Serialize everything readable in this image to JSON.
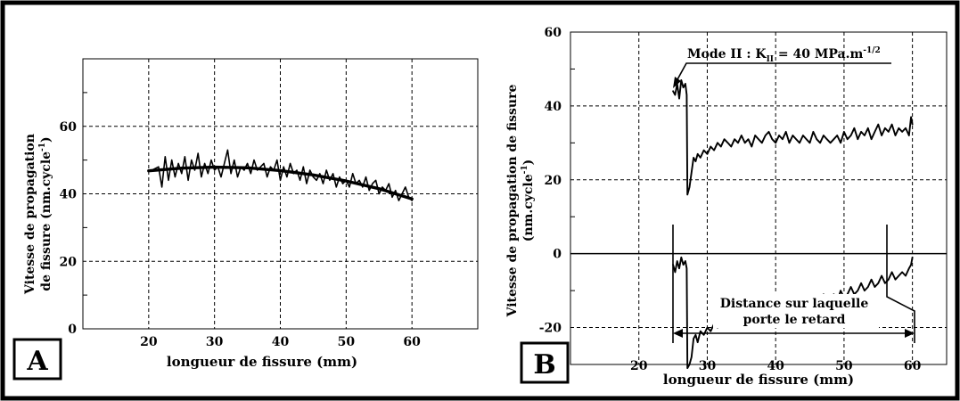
{
  "chart_data": [
    {
      "type": "line",
      "panel_label": "A",
      "xlabel": "longueur de fissure (mm)",
      "ylabel_line1": "Vitesse de propagation",
      "ylabel_line2": "de fissure (nm.cycle",
      "ylabel_sup": "-1",
      "ylabel_close": ")",
      "xlim": [
        10,
        70
      ],
      "ylim": [
        0,
        80
      ],
      "xticks": [
        20,
        30,
        40,
        50,
        60
      ],
      "yticks": [
        0,
        20,
        40,
        60
      ],
      "grid": true,
      "series": [
        {
          "x": [
            20.5,
            21.5,
            22.0,
            22.5,
            23.0,
            23.5,
            24.0,
            24.5,
            25.0,
            25.5,
            26.0,
            26.5,
            27.0,
            27.5,
            28.0,
            28.5,
            29.0,
            29.5,
            30.0,
            30.5,
            31.0,
            31.5,
            32.0,
            32.5,
            33.0,
            33.5,
            34.0,
            34.5,
            35.0,
            35.5,
            36.0,
            36.5,
            37.0,
            37.5,
            38.0,
            38.5,
            39.0,
            39.5,
            40.0,
            40.5,
            41.0,
            41.5,
            42.0,
            42.5,
            43.0,
            43.5,
            44.0,
            44.5,
            45.0,
            45.5,
            46.0,
            46.5,
            47.0,
            47.5,
            48.0,
            48.5,
            49.0,
            49.5,
            50.0,
            50.5,
            51.0,
            51.5,
            52.0,
            52.5,
            53.0,
            53.5,
            54.0,
            54.5,
            55.0,
            55.5,
            56.0,
            56.5,
            57.0,
            57.5,
            58.0,
            58.5,
            59.0,
            59.5,
            60.0
          ],
          "values": [
            47,
            48,
            42,
            51,
            44,
            50,
            45,
            49,
            46,
            51,
            44,
            50,
            47,
            52,
            45,
            49,
            46,
            50,
            47,
            48,
            45,
            49,
            53,
            46,
            50,
            45,
            48,
            47,
            49,
            46,
            50,
            47,
            48,
            49,
            45,
            48,
            47,
            50,
            44,
            48,
            45,
            49,
            46,
            47,
            44,
            48,
            43,
            47,
            45,
            44,
            46,
            43,
            47,
            44,
            46,
            42,
            45,
            43,
            44,
            42,
            46,
            43,
            44,
            42,
            45,
            41,
            43,
            44,
            40,
            42,
            41,
            43,
            39,
            41,
            38,
            40,
            42,
            39,
            38
          ]
        },
        {
          "x": [
            20.0,
            25.0,
            30.0,
            35.0,
            40.0,
            45.0,
            50.0,
            55.0,
            60.0
          ],
          "values": [
            46.8,
            47.6,
            47.9,
            47.7,
            46.9,
            45.6,
            43.8,
            41.5,
            38.5
          ]
        }
      ]
    },
    {
      "type": "line",
      "panel_label": "B",
      "xlabel": "longueur de fissure (mm)",
      "ylabel_line1": "Vitesse de propagation de fissure",
      "ylabel_line2": "(nm.cycle",
      "ylabel_sup": "-1",
      "ylabel_close": ")",
      "xlim": [
        10,
        65
      ],
      "ylim": [
        -30,
        60
      ],
      "xticks": [
        20,
        30,
        40,
        50,
        60
      ],
      "yticks": [
        -20,
        0,
        20,
        40,
        60
      ],
      "grid": true,
      "series": [
        {
          "x": [
            25.0,
            25.3,
            25.6,
            25.9,
            26.2,
            26.5,
            26.8,
            27.0,
            27.1,
            27.4,
            27.7,
            28.0,
            28.3,
            28.6,
            29.0,
            29.5,
            30.0,
            30.5,
            31.0,
            31.5,
            32.0,
            32.5,
            33.0,
            33.5,
            34.0,
            34.5,
            35.0,
            35.5,
            36.0,
            36.5,
            37.0,
            37.5,
            38.0,
            38.5,
            39.0,
            39.5,
            40.0,
            40.5,
            41.0,
            41.5,
            42.0,
            42.5,
            43.0,
            43.5,
            44.0,
            44.5,
            45.0,
            45.5,
            46.0,
            46.5,
            47.0,
            47.5,
            48.0,
            48.5,
            49.0,
            49.5,
            50.0,
            50.5,
            51.0,
            51.5,
            52.0,
            52.5,
            53.0,
            53.5,
            54.0,
            54.5,
            55.0,
            55.5,
            56.0,
            56.5,
            57.0,
            57.5,
            58.0,
            58.5,
            59.0,
            59.5,
            59.8,
            60.0
          ],
          "values": [
            44,
            43,
            46,
            42,
            47,
            45,
            46,
            43,
            16,
            18,
            22,
            26,
            25,
            27,
            26,
            28,
            27,
            29,
            28,
            30,
            29,
            31,
            30,
            29,
            31,
            30,
            32,
            30,
            31,
            29,
            32,
            31,
            30,
            32,
            33,
            31,
            30,
            32,
            31,
            33,
            30,
            32,
            31,
            30,
            32,
            31,
            30,
            33,
            31,
            30,
            32,
            31,
            30,
            31,
            32,
            30,
            33,
            31,
            32,
            34,
            31,
            33,
            32,
            34,
            31,
            33,
            35,
            32,
            34,
            33,
            35,
            32,
            34,
            33,
            34,
            32,
            37,
            35
          ]
        },
        {
          "x": [
            25.0,
            25.3,
            25.6,
            25.9,
            26.2,
            26.5,
            26.8,
            27.0,
            27.1,
            27.4,
            27.7,
            28.0,
            28.3,
            28.6,
            29.0,
            29.5,
            30.0,
            30.5,
            31.0,
            31.5,
            32.0,
            32.5,
            33.0,
            33.5,
            34.0,
            34.5,
            35.0,
            35.5,
            36.0,
            36.5,
            37.0,
            37.5,
            38.0,
            38.5,
            39.0,
            39.5,
            40.0,
            40.5,
            41.0,
            41.5,
            42.0,
            42.5,
            43.0,
            43.5,
            44.0,
            44.5,
            45.0,
            45.5,
            46.0,
            46.5,
            47.0,
            47.5,
            48.0,
            48.5,
            49.0,
            49.5,
            50.0,
            50.5,
            51.0,
            51.5,
            52.0,
            52.5,
            53.0,
            53.5,
            54.0,
            54.5,
            55.0,
            55.5,
            56.0,
            56.5,
            57.0,
            57.5,
            58.0,
            58.5,
            59.0,
            59.5,
            59.8,
            60.0
          ],
          "values": [
            -3,
            -5,
            -2,
            -4,
            -1,
            -3,
            -2,
            -4,
            -31,
            -30,
            -28,
            -23,
            -22,
            -24,
            -21,
            -22,
            -20,
            -21,
            -19,
            -20,
            -18,
            -19,
            -17,
            -18,
            -19,
            -17,
            -16,
            -18,
            -15,
            -17,
            -16,
            -15,
            -17,
            -14,
            -16,
            -15,
            -14,
            -16,
            -13,
            -15,
            -14,
            -16,
            -13,
            -15,
            -14,
            -12,
            -15,
            -13,
            -12,
            -14,
            -11,
            -13,
            -12,
            -11,
            -13,
            -10,
            -12,
            -11,
            -9,
            -11,
            -10,
            -8,
            -10,
            -9,
            -7,
            -9,
            -8,
            -6,
            -8,
            -7,
            -5,
            -7,
            -6,
            -5,
            -6,
            -4,
            -3,
            -1
          ]
        }
      ],
      "annotations": {
        "mode_pre": "Mode II : K",
        "mode_sub": "II",
        "mode_mid": " = 40 MPa.m",
        "mode_sup": "-1/2",
        "distance_line1": "Distance sur laquelle",
        "distance_line2": "porte le retard"
      }
    }
  ]
}
